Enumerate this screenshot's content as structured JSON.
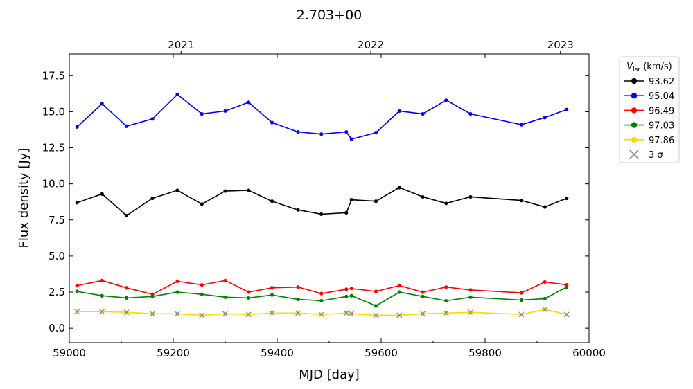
{
  "chart_data": {
    "type": "line",
    "title": "2.703+00",
    "xlabel": "MJD [day]",
    "ylabel": "Flux density [Jy]",
    "xlim": [
      59000,
      60000
    ],
    "ylim": [
      -1.0,
      19.0
    ],
    "xticks": [
      59000,
      59200,
      59400,
      59600,
      59800,
      60000
    ],
    "yticks": [
      0.0,
      2.5,
      5.0,
      7.5,
      10.0,
      12.5,
      15.0,
      17.5
    ],
    "ytick_labels": [
      "0.0",
      "2.5",
      "5.0",
      "7.5",
      "10.0",
      "12.5",
      "15.0",
      "17.5"
    ],
    "top_axis": {
      "ticks": [
        59215,
        59580,
        59945
      ],
      "labels": [
        "2021",
        "2022",
        "2023"
      ]
    },
    "legend": {
      "title_main": "V",
      "title_sub": "lsr",
      "title_unit": " (km/s)",
      "placement": "outside-right-top",
      "marker_label": "3 σ"
    },
    "x": [
      59015,
      59063,
      59110,
      59160,
      59208,
      59255,
      59300,
      59345,
      59390,
      59440,
      59485,
      59533,
      59543,
      59590,
      59635,
      59680,
      59725,
      59772,
      59870,
      59915,
      59957
    ],
    "series": [
      {
        "name": "93.62",
        "color": "#000000",
        "values": [
          8.7,
          9.3,
          7.8,
          9.0,
          9.55,
          8.6,
          9.5,
          9.55,
          8.8,
          8.2,
          7.9,
          8.0,
          8.9,
          8.8,
          9.75,
          9.1,
          8.65,
          9.1,
          8.85,
          8.4,
          9.0
        ],
        "limits": []
      },
      {
        "name": "95.04",
        "color": "#0000ff",
        "values": [
          13.95,
          15.55,
          14.0,
          14.5,
          16.2,
          14.85,
          15.05,
          15.65,
          14.25,
          13.6,
          13.45,
          13.6,
          13.1,
          13.55,
          15.05,
          14.85,
          15.8,
          14.85,
          14.1,
          14.6,
          15.15
        ],
        "limits": []
      },
      {
        "name": "96.49",
        "color": "#ff0000",
        "values": [
          2.95,
          3.3,
          2.8,
          2.35,
          3.25,
          3.0,
          3.3,
          2.5,
          2.8,
          2.85,
          2.4,
          2.7,
          2.75,
          2.55,
          2.95,
          2.5,
          2.85,
          2.65,
          2.45,
          3.2,
          3.0
        ],
        "limits": []
      },
      {
        "name": "97.03",
        "color": "#008000",
        "values": [
          2.55,
          2.25,
          2.1,
          2.2,
          2.5,
          2.35,
          2.15,
          2.1,
          2.3,
          2.0,
          1.9,
          2.2,
          2.25,
          1.55,
          2.5,
          2.2,
          1.9,
          2.15,
          1.95,
          2.05,
          2.85
        ],
        "limits": []
      },
      {
        "name": "97.86",
        "color": "#ffd700",
        "values": [
          1.15,
          1.15,
          1.1,
          1.0,
          1.0,
          0.9,
          1.0,
          0.95,
          1.05,
          1.05,
          0.95,
          1.05,
          1.0,
          0.9,
          0.9,
          1.0,
          1.05,
          1.1,
          0.95,
          1.3,
          0.95
        ],
        "limits": [
          1.15,
          1.15,
          1.1,
          1.0,
          1.0,
          0.9,
          1.0,
          0.95,
          1.05,
          1.05,
          0.95,
          1.05,
          1.0,
          0.9,
          0.9,
          1.0,
          1.05,
          1.1,
          0.95,
          1.3,
          0.95
        ]
      }
    ],
    "grid": false
  }
}
